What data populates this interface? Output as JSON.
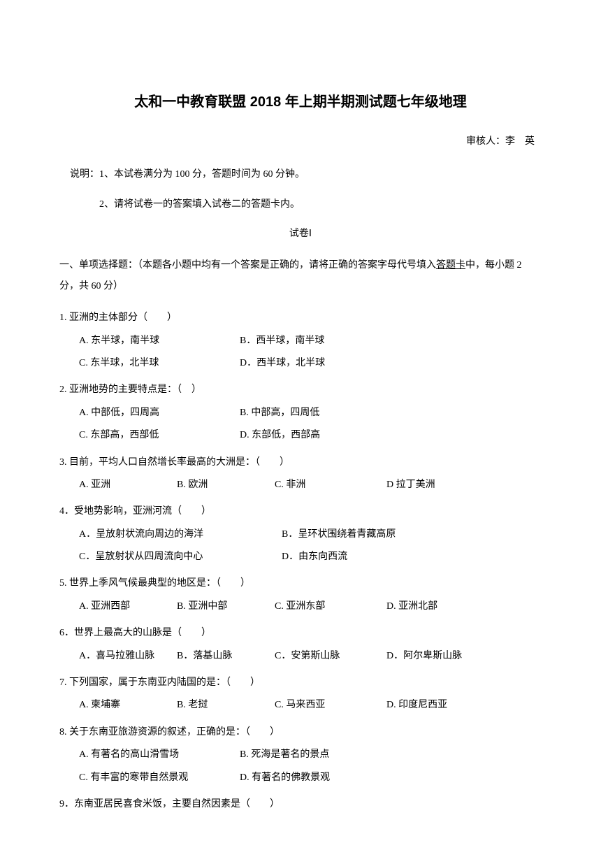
{
  "title": "太和一中教育联盟 2018 年上期半期测试题七年级地理",
  "reviewer": "审核人：李　英",
  "instruction1": "说明：1、本试卷满分为 100 分，答题时间为 60 分钟。",
  "instruction2": "2、请将试卷一的答案填入试卷二的答题卡内。",
  "paperLabel": "试卷Ⅰ",
  "sectionHeader": {
    "part1": "一、单项选择题：（本题各小题中均有一个答案是正确的，请将正确的答案字母代号填入",
    "underlined": "答题卡",
    "part2": "中，每小题 2 分，共 60 分）"
  },
  "questions": [
    {
      "text": "1. 亚洲的主体部分（　　）",
      "layout": "2col-2row",
      "options": [
        "A. 东半球，南半球",
        "B．西半球，南半球",
        "C. 东半球，北半球",
        "D．西半球，北半球"
      ]
    },
    {
      "text": "2. 亚洲地势的主要特点是：（　）",
      "layout": "2col-2row",
      "options": [
        "A. 中部低，四周高",
        "B. 中部高，四周低",
        "C. 东部高，西部低",
        "D. 东部低，西部高"
      ]
    },
    {
      "text": "3. 目前，平均人口自然增长率最高的大洲是：（　　）",
      "layout": "4col",
      "options": [
        "A. 亚洲",
        "B. 欧洲",
        "C. 非洲",
        "D 拉丁美洲"
      ]
    },
    {
      "text": "4．受地势影响，亚洲河流（　　）",
      "layout": "2col-2row-indent",
      "options": [
        "A．呈放射状流向周边的海洋",
        "B．呈环状围绕着青藏高原",
        "C．呈放射状从四周流向中心",
        "D．由东向西流"
      ]
    },
    {
      "text": "5. 世界上季风气候最典型的地区是：（　　）",
      "layout": "4col",
      "options": [
        "A. 亚洲西部",
        "B. 亚洲中部",
        "C. 亚洲东部",
        "D. 亚洲北部"
      ]
    },
    {
      "text": "6．世界上最高大的山脉是（　　）",
      "layout": "4col-indent",
      "options": [
        "A．喜马拉雅山脉",
        "B．落基山脉",
        "C．安第斯山脉",
        "D．阿尔卑斯山脉"
      ]
    },
    {
      "text": "7. 下列国家，属于东南亚内陆国的是：（　　）",
      "layout": "4col",
      "options": [
        "A. 柬埔寨",
        "B. 老挝",
        "C. 马来西亚",
        "D. 印度尼西亚"
      ]
    },
    {
      "text": "8. 关于东南亚旅游资源的叙述，正确的是：（　　）",
      "layout": "2col-2row",
      "options": [
        "A. 有著名的高山滑雪场",
        "B. 死海是著名的景点",
        "C. 有丰富的寒带自然景观",
        "D. 有著名的佛教景观"
      ]
    },
    {
      "text": "9．东南亚居民喜食米饭，主要自然因素是（　　）",
      "layout": "none",
      "options": []
    }
  ]
}
